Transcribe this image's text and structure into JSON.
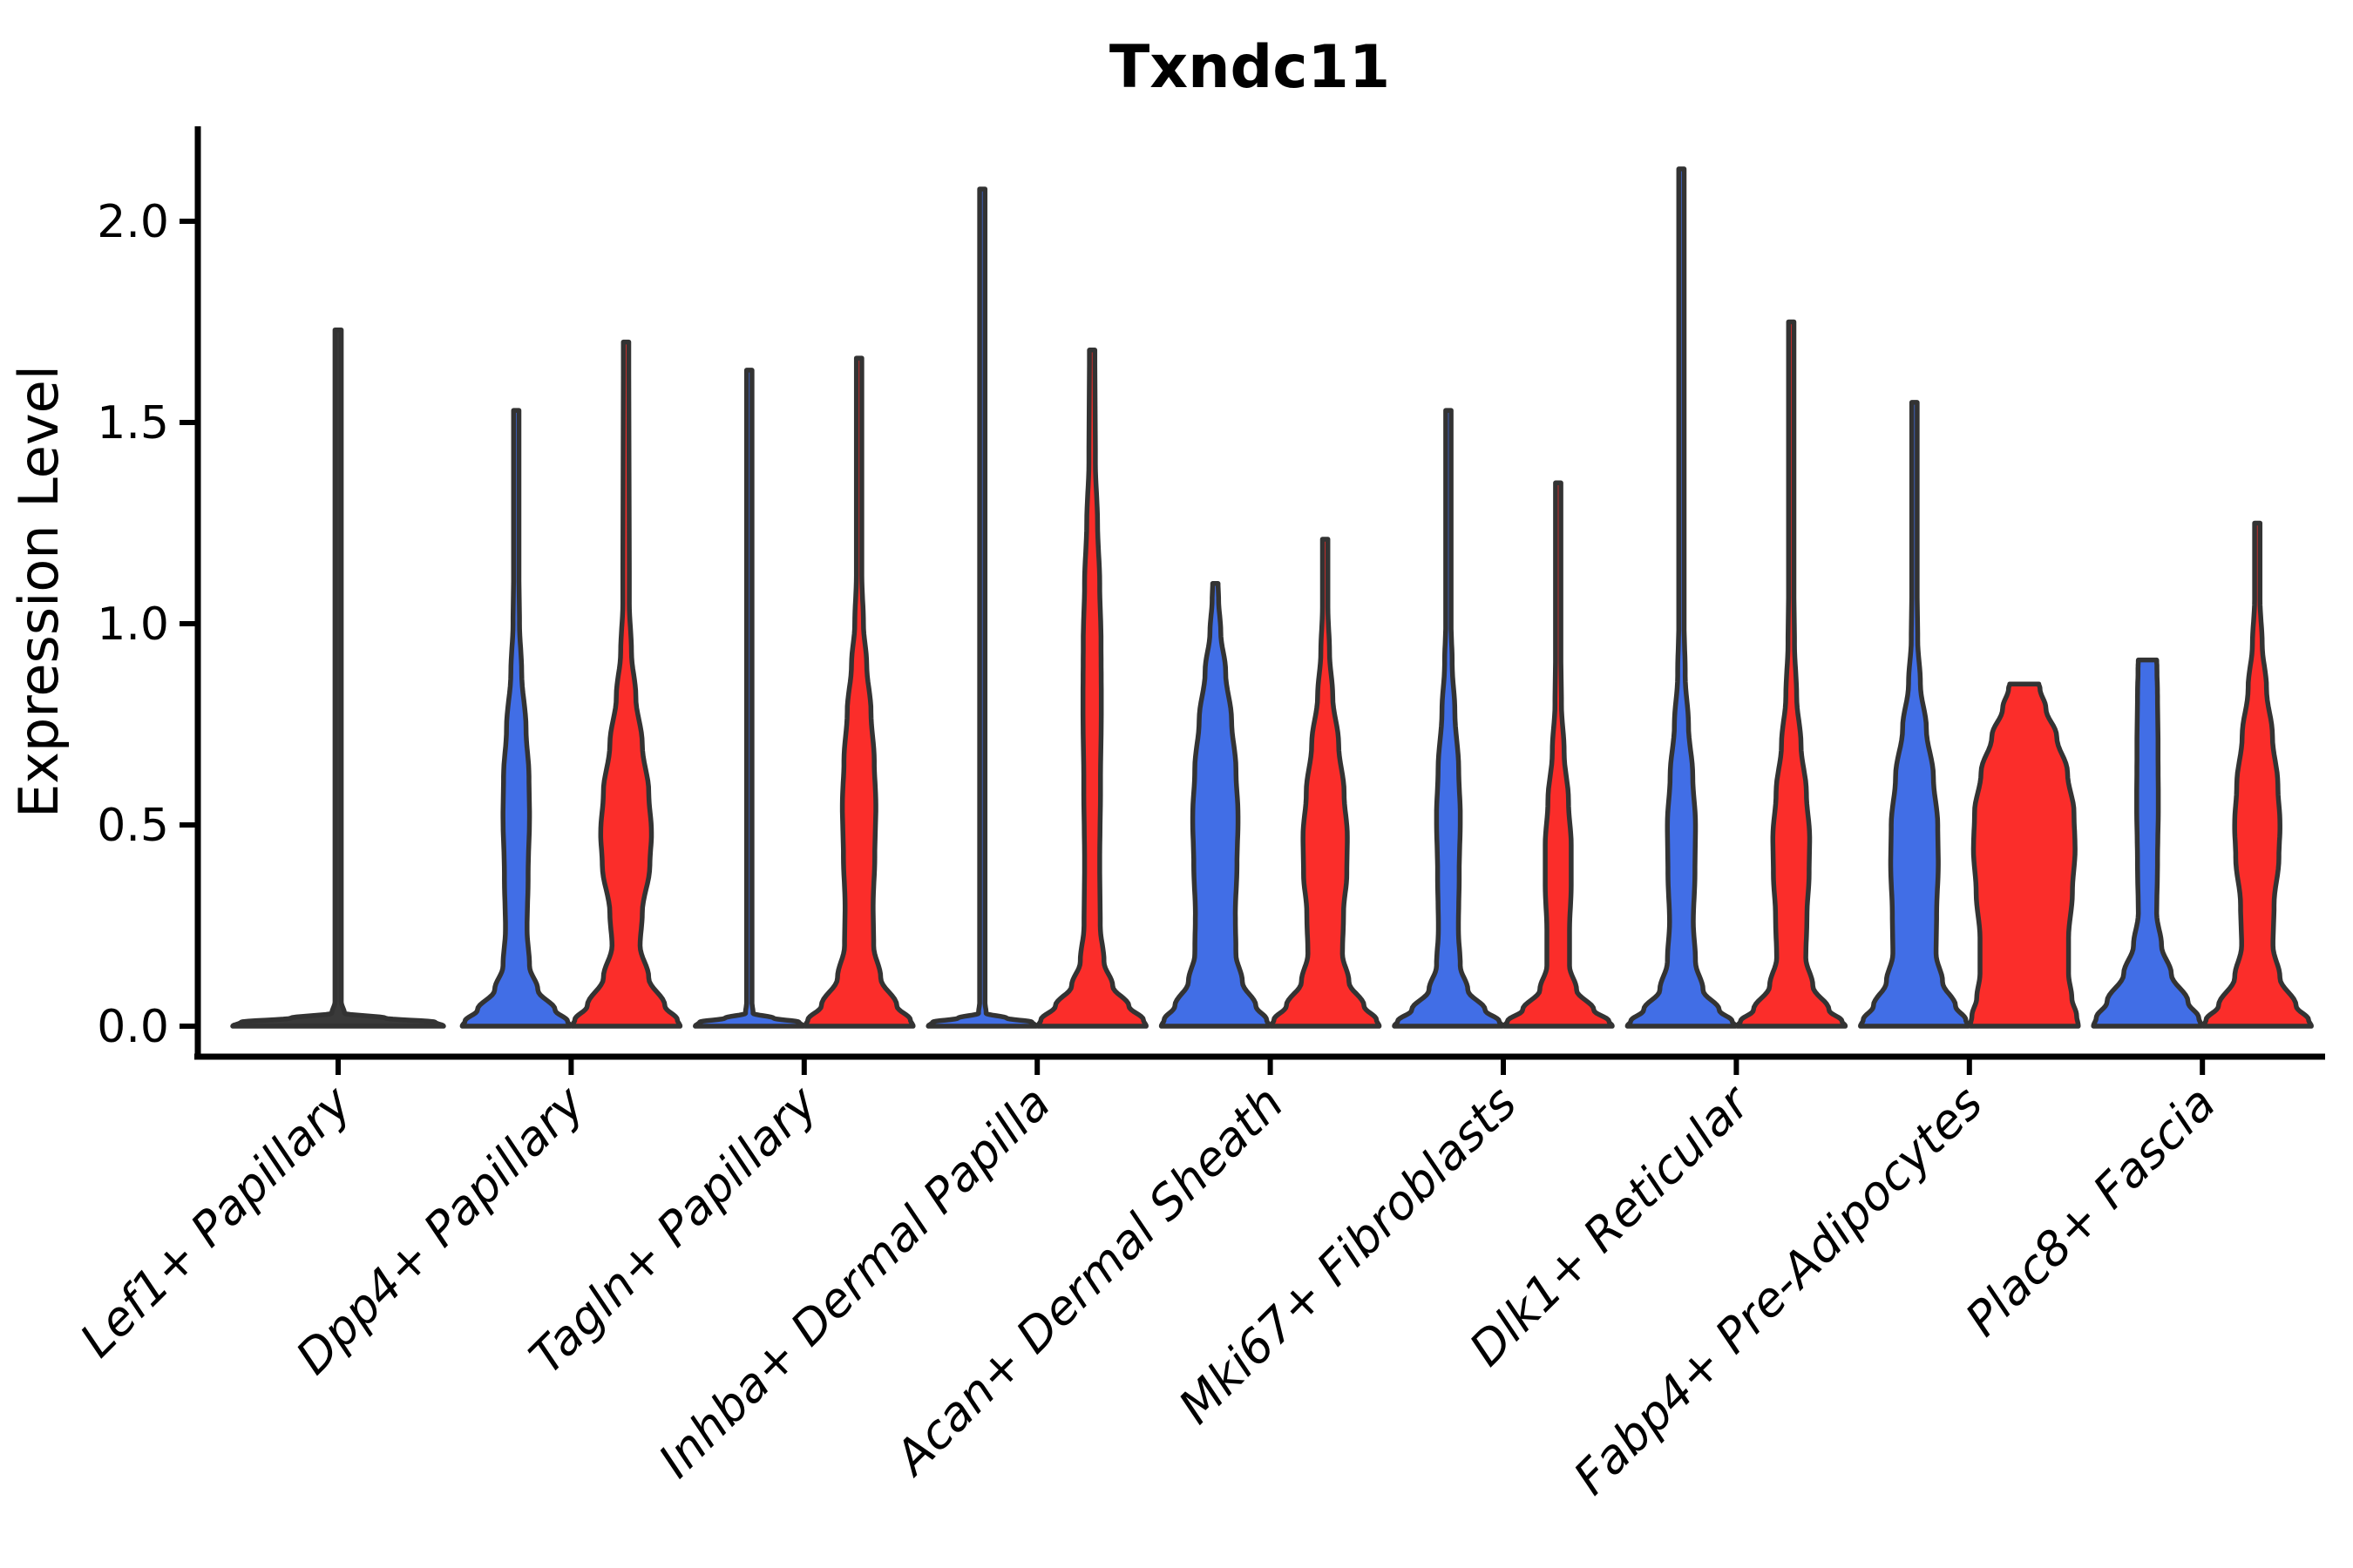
{
  "chart_data": {
    "type": "violin",
    "title": "Txndc11",
    "ylabel": "Expression Level",
    "xlabel": "",
    "ylim": [
      -0.08,
      2.24
    ],
    "yticks": [
      0.0,
      0.5,
      1.0,
      1.5,
      2.0
    ],
    "ytick_labels": [
      "0.0",
      "0.5",
      "1.0",
      "1.5",
      "2.0"
    ],
    "grid": false,
    "legend": "none",
    "background": "#FFFFFF",
    "colors": {
      "blue": "#416EE6",
      "red": "#FB2D2A",
      "dark": "#3A3A3A",
      "outline": "#333333",
      "axis": "#000000"
    },
    "categories": [
      "Lef1+ Papillary",
      "Dpp4+ Papillary",
      "Tagln+ Papillary",
      "Inhba+ Dermal Papilla",
      "Acan+ Dermal Sheath",
      "Mki67+ Fibroblasts",
      "Dlk1+ Reticular",
      "Fabp4+ Pre-Adipocytes",
      "Plac8+ Fascia"
    ],
    "groups": [
      "blue-left",
      "red-right"
    ],
    "violins": [
      {
        "category": "Lef1+ Papillary",
        "cat": 0,
        "pos": "center",
        "color": "dark",
        "max": 1.73,
        "profile": [
          [
            0,
            1
          ],
          [
            0.01,
            0.92
          ],
          [
            0.02,
            0.45
          ],
          [
            0.032,
            0.06
          ],
          [
            0.06,
            0.03
          ],
          [
            1.73,
            0.03
          ]
        ]
      },
      {
        "category": "Dpp4+ Papillary",
        "cat": 1,
        "pos": "left",
        "color": "blue",
        "max": 1.53,
        "profile": [
          [
            0,
            1
          ],
          [
            0.012,
            0.95
          ],
          [
            0.04,
            0.72
          ],
          [
            0.09,
            0.4
          ],
          [
            0.15,
            0.245
          ],
          [
            0.24,
            0.2
          ],
          [
            0.38,
            0.22
          ],
          [
            0.52,
            0.245
          ],
          [
            0.62,
            0.235
          ],
          [
            0.74,
            0.18
          ],
          [
            0.88,
            0.1
          ],
          [
            1.0,
            0.06
          ],
          [
            1.12,
            0.05
          ],
          [
            1.53,
            0.05
          ]
        ]
      },
      {
        "category": "Dpp4+ Papillary",
        "cat": 1,
        "pos": "right",
        "color": "red",
        "max": 1.7,
        "profile": [
          [
            0,
            1
          ],
          [
            0.015,
            0.95
          ],
          [
            0.05,
            0.72
          ],
          [
            0.12,
            0.42
          ],
          [
            0.2,
            0.26
          ],
          [
            0.28,
            0.3
          ],
          [
            0.4,
            0.44
          ],
          [
            0.48,
            0.47
          ],
          [
            0.58,
            0.42
          ],
          [
            0.7,
            0.3
          ],
          [
            0.82,
            0.18
          ],
          [
            0.93,
            0.1
          ],
          [
            1.05,
            0.06
          ],
          [
            1.7,
            0.05
          ]
        ]
      },
      {
        "category": "Tagln+ Papillary",
        "cat": 2,
        "pos": "left",
        "color": "blue",
        "max": 1.63,
        "profile": [
          [
            0,
            1
          ],
          [
            0.01,
            0.92
          ],
          [
            0.02,
            0.45
          ],
          [
            0.032,
            0.07
          ],
          [
            0.06,
            0.05
          ],
          [
            1.63,
            0.05
          ]
        ]
      },
      {
        "category": "Tagln+ Papillary",
        "cat": 2,
        "pos": "right",
        "color": "red",
        "max": 1.66,
        "profile": [
          [
            0,
            1
          ],
          [
            0.015,
            0.95
          ],
          [
            0.05,
            0.7
          ],
          [
            0.12,
            0.4
          ],
          [
            0.2,
            0.27
          ],
          [
            0.3,
            0.26
          ],
          [
            0.42,
            0.29
          ],
          [
            0.55,
            0.31
          ],
          [
            0.66,
            0.28
          ],
          [
            0.78,
            0.22
          ],
          [
            0.9,
            0.14
          ],
          [
            1.0,
            0.08
          ],
          [
            1.12,
            0.05
          ],
          [
            1.66,
            0.05
          ]
        ]
      },
      {
        "category": "Inhba+ Dermal Papilla",
        "cat": 3,
        "pos": "left",
        "color": "blue",
        "max": 2.08,
        "profile": [
          [
            0,
            1
          ],
          [
            0.01,
            0.92
          ],
          [
            0.02,
            0.45
          ],
          [
            0.032,
            0.07
          ],
          [
            0.06,
            0.05
          ],
          [
            2.08,
            0.05
          ]
        ]
      },
      {
        "category": "Inhba+ Dermal Papilla",
        "cat": 3,
        "pos": "right",
        "color": "red",
        "max": 1.68,
        "profile": [
          [
            0,
            1
          ],
          [
            0.015,
            0.95
          ],
          [
            0.05,
            0.68
          ],
          [
            0.1,
            0.38
          ],
          [
            0.16,
            0.22
          ],
          [
            0.25,
            0.15
          ],
          [
            0.4,
            0.14
          ],
          [
            0.6,
            0.155
          ],
          [
            0.8,
            0.17
          ],
          [
            0.95,
            0.165
          ],
          [
            1.1,
            0.14
          ],
          [
            1.25,
            0.1
          ],
          [
            1.4,
            0.06
          ],
          [
            1.68,
            0.05
          ]
        ]
      },
      {
        "category": "Acan+ Dermal Sheath",
        "cat": 4,
        "pos": "left",
        "color": "blue",
        "max": 1.1,
        "profile": [
          [
            0,
            1
          ],
          [
            0.015,
            0.95
          ],
          [
            0.05,
            0.75
          ],
          [
            0.11,
            0.5
          ],
          [
            0.18,
            0.38
          ],
          [
            0.28,
            0.37
          ],
          [
            0.4,
            0.4
          ],
          [
            0.52,
            0.42
          ],
          [
            0.64,
            0.38
          ],
          [
            0.76,
            0.3
          ],
          [
            0.88,
            0.19
          ],
          [
            0.98,
            0.1
          ],
          [
            1.06,
            0.06
          ],
          [
            1.1,
            0.05
          ]
        ]
      },
      {
        "category": "Acan+ Dermal Sheath",
        "cat": 4,
        "pos": "right",
        "color": "red",
        "max": 1.21,
        "profile": [
          [
            0,
            1
          ],
          [
            0.015,
            0.95
          ],
          [
            0.05,
            0.72
          ],
          [
            0.11,
            0.44
          ],
          [
            0.18,
            0.32
          ],
          [
            0.28,
            0.34
          ],
          [
            0.38,
            0.4
          ],
          [
            0.47,
            0.41
          ],
          [
            0.58,
            0.35
          ],
          [
            0.7,
            0.25
          ],
          [
            0.82,
            0.14
          ],
          [
            0.93,
            0.08
          ],
          [
            1.04,
            0.05
          ],
          [
            1.21,
            0.05
          ]
        ]
      },
      {
        "category": "Mki67+ Fibroblasts",
        "cat": 5,
        "pos": "left",
        "color": "blue",
        "max": 1.53,
        "profile": [
          [
            0,
            1
          ],
          [
            0.012,
            0.94
          ],
          [
            0.04,
            0.68
          ],
          [
            0.09,
            0.36
          ],
          [
            0.15,
            0.22
          ],
          [
            0.24,
            0.185
          ],
          [
            0.38,
            0.2
          ],
          [
            0.52,
            0.22
          ],
          [
            0.64,
            0.19
          ],
          [
            0.78,
            0.12
          ],
          [
            0.9,
            0.07
          ],
          [
            1.0,
            0.05
          ],
          [
            1.53,
            0.05
          ]
        ]
      },
      {
        "category": "Mki67+ Fibroblasts",
        "cat": 5,
        "pos": "right",
        "color": "red",
        "max": 1.35,
        "profile": [
          [
            0,
            1
          ],
          [
            0.012,
            0.94
          ],
          [
            0.04,
            0.66
          ],
          [
            0.09,
            0.34
          ],
          [
            0.15,
            0.21
          ],
          [
            0.24,
            0.21
          ],
          [
            0.35,
            0.24
          ],
          [
            0.45,
            0.24
          ],
          [
            0.56,
            0.19
          ],
          [
            0.68,
            0.11
          ],
          [
            0.8,
            0.06
          ],
          [
            0.92,
            0.05
          ],
          [
            1.35,
            0.05
          ]
        ]
      },
      {
        "category": "Dlk1+ Reticular",
        "cat": 6,
        "pos": "left",
        "color": "blue",
        "max": 2.13,
        "profile": [
          [
            0,
            1
          ],
          [
            0.012,
            0.94
          ],
          [
            0.04,
            0.7
          ],
          [
            0.09,
            0.4
          ],
          [
            0.16,
            0.26
          ],
          [
            0.26,
            0.22
          ],
          [
            0.38,
            0.25
          ],
          [
            0.5,
            0.26
          ],
          [
            0.62,
            0.21
          ],
          [
            0.75,
            0.13
          ],
          [
            0.87,
            0.07
          ],
          [
            1.0,
            0.05
          ],
          [
            2.13,
            0.05
          ]
        ]
      },
      {
        "category": "Dlk1+ Reticular",
        "cat": 6,
        "pos": "right",
        "color": "red",
        "max": 1.75,
        "profile": [
          [
            0,
            1
          ],
          [
            0.012,
            0.94
          ],
          [
            0.04,
            0.7
          ],
          [
            0.1,
            0.4
          ],
          [
            0.17,
            0.27
          ],
          [
            0.27,
            0.29
          ],
          [
            0.38,
            0.33
          ],
          [
            0.47,
            0.34
          ],
          [
            0.58,
            0.28
          ],
          [
            0.7,
            0.18
          ],
          [
            0.82,
            0.1
          ],
          [
            0.95,
            0.06
          ],
          [
            1.08,
            0.05
          ],
          [
            1.75,
            0.05
          ]
        ]
      },
      {
        "category": "Fabp4+ Pre-Adipocytes",
        "cat": 7,
        "pos": "left",
        "color": "blue",
        "max": 1.55,
        "profile": [
          [
            0,
            1
          ],
          [
            0.015,
            0.95
          ],
          [
            0.05,
            0.76
          ],
          [
            0.11,
            0.52
          ],
          [
            0.18,
            0.4
          ],
          [
            0.28,
            0.41
          ],
          [
            0.4,
            0.44
          ],
          [
            0.5,
            0.43
          ],
          [
            0.62,
            0.35
          ],
          [
            0.74,
            0.22
          ],
          [
            0.85,
            0.11
          ],
          [
            0.96,
            0.06
          ],
          [
            1.08,
            0.05
          ],
          [
            1.55,
            0.05
          ]
        ]
      },
      {
        "category": "Fabp4+ Pre-Adipocytes",
        "cat": 7,
        "pos": "right",
        "color": "red",
        "max": 0.85,
        "flat_top": true,
        "profile": [
          [
            0,
            1
          ],
          [
            0.025,
            0.97
          ],
          [
            0.07,
            0.88
          ],
          [
            0.13,
            0.82
          ],
          [
            0.22,
            0.82
          ],
          [
            0.33,
            0.89
          ],
          [
            0.44,
            0.94
          ],
          [
            0.53,
            0.92
          ],
          [
            0.63,
            0.8
          ],
          [
            0.72,
            0.6
          ],
          [
            0.79,
            0.4
          ],
          [
            0.84,
            0.29
          ],
          [
            0.85,
            0.27
          ]
        ]
      },
      {
        "category": "Plac8+ Fascia",
        "cat": 8,
        "pos": "left",
        "color": "blue",
        "max": 0.91,
        "flat_top": true,
        "profile": [
          [
            0,
            1
          ],
          [
            0.02,
            0.95
          ],
          [
            0.06,
            0.75
          ],
          [
            0.13,
            0.44
          ],
          [
            0.2,
            0.26
          ],
          [
            0.28,
            0.17
          ],
          [
            0.4,
            0.185
          ],
          [
            0.55,
            0.2
          ],
          [
            0.7,
            0.195
          ],
          [
            0.82,
            0.185
          ],
          [
            0.89,
            0.175
          ],
          [
            0.91,
            0.17
          ]
        ]
      },
      {
        "category": "Plac8+ Fascia",
        "cat": 8,
        "pos": "right",
        "color": "red",
        "max": 1.25,
        "profile": [
          [
            0,
            1
          ],
          [
            0.015,
            0.95
          ],
          [
            0.05,
            0.72
          ],
          [
            0.12,
            0.42
          ],
          [
            0.2,
            0.29
          ],
          [
            0.3,
            0.31
          ],
          [
            0.42,
            0.4
          ],
          [
            0.5,
            0.42
          ],
          [
            0.6,
            0.38
          ],
          [
            0.72,
            0.28
          ],
          [
            0.84,
            0.17
          ],
          [
            0.95,
            0.09
          ],
          [
            1.06,
            0.05
          ],
          [
            1.25,
            0.05
          ]
        ]
      }
    ]
  }
}
